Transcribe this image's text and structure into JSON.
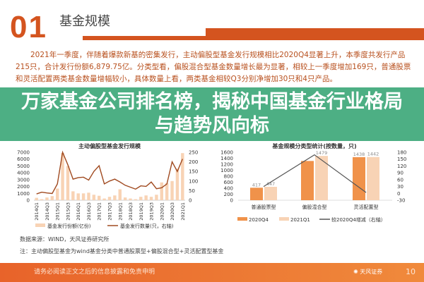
{
  "header": {
    "number": "01",
    "title": "基金规模"
  },
  "paragraph": "2021年一季度，伴随着爆款新基的密集发行，主动偏股型基金发行规模相比2020Q4显著上升，本季度共发行产品215只，合计发行份额6,879.75亿。分类型看，偏股混合型基金数量增长最为显著，相较上一季度增加169只，普通股票和灵活配置两类基金数量增幅较小，具体数量上看，两类基金相较Q3分别净增加30只和4只产品。",
  "banner": {
    "title": "万家基金公司排名榜，揭秘中国基金行业格局与趋势风向标"
  },
  "colors": {
    "accent": "#d4541f",
    "banner": "#3ea87a",
    "bar_dark": "#f0924a",
    "bar_light": "#f8d3b5",
    "line_left": "#a04a20",
    "line_right": "#555555"
  },
  "chart_data": [
    {
      "type": "bar+line",
      "title": "主动偏股型基金发行规模",
      "categories": [
        "2014Q1",
        "2014Q2",
        "2014Q3",
        "2014Q4",
        "2015Q1",
        "2015Q2",
        "2015Q3",
        "2015Q4",
        "2016Q1",
        "2016Q2",
        "2016Q3",
        "2016Q4",
        "2017Q1",
        "2017Q2",
        "2017Q3",
        "2017Q4",
        "2018Q1",
        "2018Q2",
        "2018Q3",
        "2018Q4",
        "2019Q1",
        "2019Q2",
        "2019Q3",
        "2019Q4",
        "2020Q1",
        "2020Q2",
        "2020Q3",
        "2020Q4",
        "2021Q1"
      ],
      "tick_labels": [
        "2014Q1",
        "2014Q3",
        "2015Q1",
        "2015Q3",
        "2016Q1",
        "2016Q3",
        "2017Q1",
        "2017Q3",
        "2018Q1",
        "2018Q3",
        "2019Q1",
        "2019Q3",
        "2020Q1",
        "2020Q3",
        "2021Q1"
      ],
      "series": [
        {
          "name": "基金发行份额(亿份)",
          "axis": "left",
          "type": "bar",
          "values": [
            350,
            150,
            400,
            600,
            1700,
            6900,
            5000,
            1300,
            1000,
            1000,
            1100,
            800,
            650,
            250,
            500,
            700,
            1600,
            400,
            250,
            150,
            500,
            700,
            500,
            800,
            2600,
            2500,
            2800,
            4600,
            6880
          ]
        },
        {
          "name": "基金发行数量(只，右轴)",
          "axis": "right",
          "type": "line",
          "values": [
            33,
            42,
            38,
            35,
            85,
            250,
            185,
            110,
            118,
            120,
            105,
            150,
            180,
            85,
            100,
            110,
            95,
            78,
            68,
            58,
            75,
            72,
            95,
            60,
            65,
            85,
            200,
            150,
            215
          ]
        }
      ],
      "yleft": {
        "range": [
          0,
          7000
        ],
        "ticks": [
          "0",
          "1000",
          "2000",
          "3000",
          "4000",
          "5000",
          "6000",
          "7000"
        ]
      },
      "yright": {
        "range": [
          0,
          250
        ],
        "ticks": [
          "0",
          "50",
          "100",
          "150",
          "200",
          "250"
        ]
      },
      "legend": "bottom"
    },
    {
      "type": "bar+line",
      "title": "基金规模分类型统计(按数量，只)",
      "categories": [
        "普通股票型",
        "偏股混合型",
        "灵活配置型"
      ],
      "series": [
        {
          "name": "2020Q4",
          "type": "bar",
          "axis": "left",
          "values": [
            417,
            1310,
            1438
          ],
          "labels": [
            "417",
            "",
            "1438"
          ]
        },
        {
          "name": "2021Q1",
          "type": "bar",
          "axis": "left",
          "values": [
            447,
            1479,
            1442
          ],
          "labels": [
            "447",
            "1479",
            "1442"
          ]
        },
        {
          "name": "较2020Q4增减（右轴）",
          "type": "line",
          "axis": "right",
          "values": [
            30,
            169,
            4
          ]
        }
      ],
      "yleft": {
        "range": [
          0,
          1600
        ],
        "ticks": [
          "0",
          "200",
          "400",
          "600",
          "800",
          "1000",
          "1200",
          "1400",
          "1600"
        ]
      },
      "yright": {
        "range": [
          -30,
          180
        ],
        "ticks": [
          "-30",
          "0",
          "30",
          "60",
          "90",
          "120",
          "150",
          "180"
        ]
      },
      "legend": "bottom"
    }
  ],
  "source": "数据来源：WIND，天风证券研究所",
  "note": "注：主动偏股型基金为wind基金分类中普通股票型+偏股混合型+灵活配置型基金",
  "footer": {
    "disclaimer": "请务必阅读正文之后的信息披露和免责申明",
    "logo": "天风证券",
    "page": "10"
  }
}
